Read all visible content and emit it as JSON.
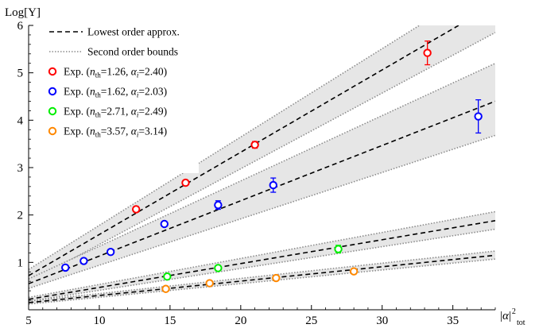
{
  "chart_data": {
    "type": "scatter",
    "title": "",
    "ylabel": "Log[Y]",
    "xlabel": "|α|²_tot",
    "xlim": [
      5,
      38
    ],
    "ylim": [
      0,
      6
    ],
    "xticks": [
      "5",
      "10",
      "15",
      "20",
      "25",
      "30",
      "35"
    ],
    "yticks": [
      "1",
      "2",
      "3",
      "4",
      "5",
      "6"
    ],
    "legend_position": "top-left",
    "legend": [
      {
        "label": "Lowest order approx.",
        "kind": "dashed-line",
        "color": "#000000"
      },
      {
        "label": "Second order bounds",
        "kind": "dotted-line",
        "color": "#888888"
      },
      {
        "label_prefix": "Exp. (",
        "n_sub": "th",
        "n_val": "=1.26, ",
        "a_sub": "i",
        "a_val": "=2.40)",
        "kind": "marker",
        "color": "#ff0000"
      },
      {
        "label_prefix": "Exp. (",
        "n_sub": "th",
        "n_val": "=1.62, ",
        "a_sub": "i",
        "a_val": "=2.03)",
        "kind": "marker",
        "color": "#0000ff"
      },
      {
        "label_prefix": "Exp. (",
        "n_sub": "th",
        "n_val": "=2.71, ",
        "a_sub": "i",
        "a_val": "=2.49)",
        "kind": "marker",
        "color": "#00ee00"
      },
      {
        "label_prefix": "Exp. (",
        "n_sub": "th",
        "n_val": "=3.57, ",
        "a_sub": "i",
        "a_val": "=3.14)",
        "kind": "marker",
        "color": "#ff8800"
      }
    ],
    "series": [
      {
        "color": "#ff0000",
        "fit": {
          "x": [
            5,
            38
          ],
          "y": [
            0.72,
            6.45
          ]
        },
        "band_lower": {
          "x": [
            5,
            38
          ],
          "y": [
            0.58,
            5.85
          ]
        },
        "band_upper": {
          "x": [
            5,
            38
          ],
          "y": [
            0.85,
            7.0
          ]
        },
        "points": [
          {
            "x": 12.6,
            "y": 2.12,
            "err": 0.06
          },
          {
            "x": 16.1,
            "y": 2.68,
            "err": 0.05
          },
          {
            "x": 21.0,
            "y": 3.48,
            "err": 0.07
          },
          {
            "x": 33.2,
            "y": 5.42,
            "err": 0.25
          }
        ]
      },
      {
        "color": "#0000ff",
        "fit": {
          "x": [
            5,
            38
          ],
          "y": [
            0.55,
            4.4
          ]
        },
        "band_lower": {
          "x": [
            5,
            38
          ],
          "y": [
            0.45,
            3.68
          ]
        },
        "band_upper": {
          "x": [
            5,
            38
          ],
          "y": [
            0.65,
            5.2
          ]
        },
        "points": [
          {
            "x": 7.6,
            "y": 0.89,
            "err": 0.04
          },
          {
            "x": 8.9,
            "y": 1.03,
            "err": 0.04
          },
          {
            "x": 10.8,
            "y": 1.22,
            "err": 0.04
          },
          {
            "x": 14.6,
            "y": 1.81,
            "err": 0.05
          },
          {
            "x": 18.4,
            "y": 2.21,
            "err": 0.09
          },
          {
            "x": 22.3,
            "y": 2.63,
            "err": 0.15
          },
          {
            "x": 36.8,
            "y": 4.08,
            "err": 0.35
          }
        ]
      },
      {
        "color": "#00ee00",
        "fit": {
          "x": [
            5,
            38
          ],
          "y": [
            0.22,
            1.88
          ]
        },
        "band_lower": {
          "x": [
            5,
            38
          ],
          "y": [
            0.18,
            1.7
          ]
        },
        "band_upper": {
          "x": [
            5,
            38
          ],
          "y": [
            0.26,
            2.07
          ]
        },
        "points": [
          {
            "x": 14.8,
            "y": 0.7,
            "err": 0.04
          },
          {
            "x": 18.4,
            "y": 0.88,
            "err": 0.04
          },
          {
            "x": 26.9,
            "y": 1.28,
            "err": 0.08
          }
        ]
      },
      {
        "color": "#ff8800",
        "fit": {
          "x": [
            5,
            38
          ],
          "y": [
            0.15,
            1.15
          ]
        },
        "band_lower": {
          "x": [
            5,
            38
          ],
          "y": [
            0.12,
            1.07
          ]
        },
        "band_upper": {
          "x": [
            5,
            38
          ],
          "y": [
            0.18,
            1.24
          ]
        },
        "points": [
          {
            "x": 14.7,
            "y": 0.44,
            "err": 0.03
          },
          {
            "x": 17.8,
            "y": 0.56,
            "err": 0.03
          },
          {
            "x": 22.5,
            "y": 0.67,
            "err": 0.03
          },
          {
            "x": 28.0,
            "y": 0.81,
            "err": 0.03
          }
        ]
      }
    ]
  }
}
